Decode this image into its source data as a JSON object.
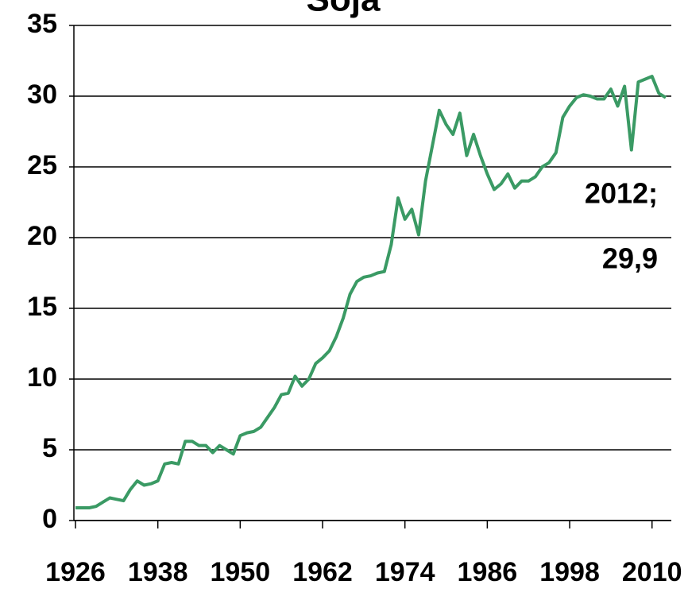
{
  "chart_data": {
    "type": "line",
    "title": "Soja",
    "x": [
      1926,
      1927,
      1928,
      1929,
      1930,
      1931,
      1932,
      1933,
      1934,
      1935,
      1936,
      1937,
      1938,
      1939,
      1940,
      1941,
      1942,
      1943,
      1944,
      1945,
      1946,
      1947,
      1948,
      1949,
      1950,
      1951,
      1952,
      1953,
      1954,
      1955,
      1956,
      1957,
      1958,
      1959,
      1960,
      1961,
      1962,
      1963,
      1964,
      1965,
      1966,
      1967,
      1968,
      1969,
      1970,
      1971,
      1972,
      1973,
      1974,
      1975,
      1976,
      1977,
      1978,
      1979,
      1980,
      1981,
      1982,
      1983,
      1984,
      1985,
      1986,
      1987,
      1988,
      1989,
      1990,
      1991,
      1992,
      1993,
      1994,
      1995,
      1996,
      1997,
      1998,
      1999,
      2000,
      2001,
      2002,
      2003,
      2004,
      2005,
      2006,
      2007,
      2008,
      2009,
      2010,
      2011,
      2012
    ],
    "series": [
      {
        "name": "Soja",
        "color": "#3a9a64",
        "values": [
          0.9,
          0.9,
          0.9,
          1.0,
          1.3,
          1.6,
          1.5,
          1.4,
          2.2,
          2.8,
          2.5,
          2.6,
          2.8,
          4.0,
          4.1,
          4.0,
          5.6,
          5.6,
          5.3,
          5.3,
          4.8,
          5.3,
          5.0,
          4.7,
          6.0,
          6.2,
          6.3,
          6.6,
          7.3,
          8.0,
          8.9,
          9.0,
          10.2,
          9.5,
          10.0,
          11.1,
          11.5,
          12.0,
          13.0,
          14.3,
          16.0,
          16.9,
          17.2,
          17.3,
          17.5,
          17.6,
          19.5,
          22.8,
          21.3,
          22.0,
          20.2,
          24.0,
          26.5,
          29.0,
          28.0,
          27.3,
          28.8,
          25.8,
          27.3,
          25.8,
          24.5,
          23.4,
          23.8,
          24.5,
          23.5,
          24.0,
          24.0,
          24.3,
          25.0,
          25.3,
          26.0,
          28.5,
          29.3,
          29.9,
          30.1,
          30.0,
          29.8,
          29.8,
          30.5,
          29.3,
          30.7,
          26.2,
          31.0,
          31.2,
          31.4,
          30.2,
          29.9
        ]
      }
    ],
    "xlim": [
      1926,
      2012
    ],
    "xticks": [
      1926,
      1938,
      1950,
      1962,
      1974,
      1986,
      1998,
      2010
    ],
    "ylim": [
      0,
      35
    ],
    "yticks": [
      0,
      5,
      10,
      15,
      20,
      25,
      30,
      35
    ],
    "grid": true,
    "annotation": [
      "2012;",
      "29,9"
    ]
  }
}
